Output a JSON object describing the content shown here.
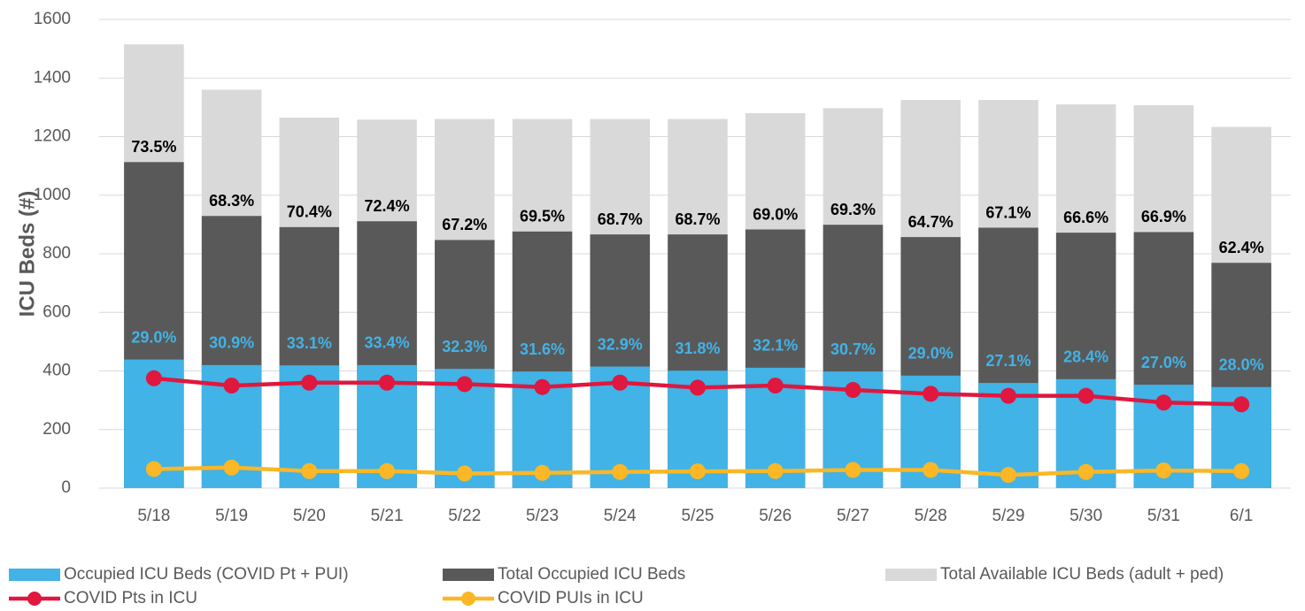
{
  "chart_data": {
    "type": "bar",
    "y_label": "ICU Beds (#)",
    "categories": [
      "5/18",
      "5/19",
      "5/20",
      "5/21",
      "5/22",
      "5/23",
      "5/24",
      "5/25",
      "5/26",
      "5/27",
      "5/28",
      "5/29",
      "5/30",
      "5/31",
      "6/1"
    ],
    "ylim": [
      0,
      1600
    ],
    "yticks": [
      0,
      200,
      400,
      600,
      800,
      1000,
      1200,
      1400,
      1600
    ],
    "grid": true,
    "series": [
      {
        "name": "Occupied ICU Beds (COVID Pt + PUI)",
        "kind": "bar",
        "color": "#41b3e6",
        "values": [
          439,
          420,
          419,
          420,
          407,
          398,
          415,
          401,
          411,
          398,
          384,
          359,
          372,
          353,
          345
        ],
        "percent_labels": [
          "29.0%",
          "30.9%",
          "33.1%",
          "33.4%",
          "32.3%",
          "31.6%",
          "32.9%",
          "31.8%",
          "32.1%",
          "30.7%",
          "29.0%",
          "27.1%",
          "28.4%",
          "27.0%",
          "28.0%"
        ],
        "label_color": "#41b3e6"
      },
      {
        "name": "Total Occupied ICU Beds",
        "kind": "bar",
        "color": "#595959",
        "values": [
          1113,
          929,
          891,
          911,
          847,
          876,
          866,
          866,
          883,
          899,
          857,
          889,
          872,
          874,
          769
        ],
        "percent_labels": [
          "73.5%",
          "68.3%",
          "70.4%",
          "72.4%",
          "67.2%",
          "69.5%",
          "68.7%",
          "68.7%",
          "69.0%",
          "69.3%",
          "64.7%",
          "67.1%",
          "66.6%",
          "66.9%",
          "62.4%"
        ],
        "label_color": "#000000"
      },
      {
        "name": "Total Available ICU Beds (adult + ped)",
        "kind": "bar",
        "color": "#d9d9d9",
        "values": [
          1515,
          1360,
          1265,
          1258,
          1260,
          1260,
          1260,
          1260,
          1280,
          1297,
          1325,
          1325,
          1310,
          1307,
          1233
        ]
      },
      {
        "name": "COVID Pts in ICU",
        "kind": "line",
        "color": "#e0173e",
        "values": [
          375,
          350,
          360,
          360,
          355,
          345,
          360,
          343,
          350,
          335,
          322,
          315,
          315,
          292,
          286
        ]
      },
      {
        "name": "COVID PUIs in ICU",
        "kind": "line",
        "color": "#fbb726",
        "values": [
          65,
          70,
          58,
          58,
          50,
          52,
          55,
          57,
          58,
          62,
          62,
          45,
          55,
          60,
          58
        ]
      }
    ]
  }
}
